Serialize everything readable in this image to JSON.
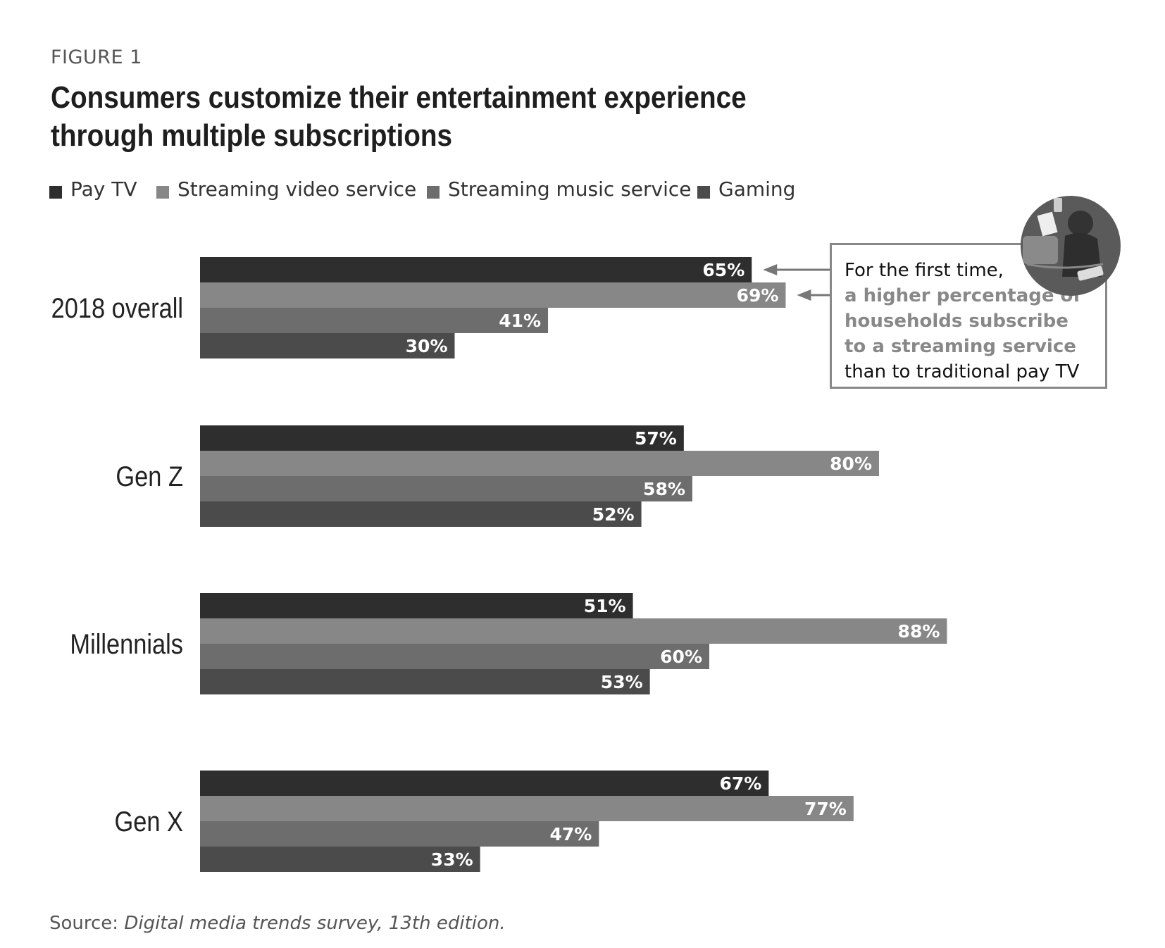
{
  "figure_label": "FIGURE 1",
  "chart_data": {
    "type": "bar",
    "orientation": "horizontal",
    "title": "Consumers customize their entertainment experience through multiple subscriptions",
    "categories": [
      "2018 overall",
      "Gen Z",
      "Millennials",
      "Gen X"
    ],
    "series": [
      {
        "name": "Pay TV",
        "color": "#2e2e2e",
        "values": [
          65,
          57,
          51,
          67
        ],
        "labels": [
          "65%",
          "57%",
          "51%",
          "67%"
        ]
      },
      {
        "name": "Streaming video service",
        "color": "#878787",
        "values": [
          69,
          80,
          88,
          77
        ],
        "labels": [
          "69%",
          "80%",
          "88%",
          "77%"
        ]
      },
      {
        "name": "Streaming music service",
        "color": "#6d6d6d",
        "values": [
          41,
          58,
          60,
          47
        ],
        "labels": [
          "41%",
          "58%",
          "60%",
          "47%"
        ]
      },
      {
        "name": "Gaming",
        "color": "#4b4b4b",
        "values": [
          30,
          52,
          53,
          33
        ],
        "labels": [
          "30%",
          "52%",
          "53%",
          "33%"
        ]
      }
    ],
    "legend_position": "top-left",
    "grid": false,
    "value_unit": "%"
  },
  "callout": {
    "line1": "For the first time,",
    "line2": "a higher percentage of households subscribe to a streaming service",
    "line3": "than to traditional pay TV"
  },
  "source": {
    "label": "Source: ",
    "title": "Digital media trends survey, 13th edition."
  },
  "illustration": {
    "icon": "person-with-devices-illustration",
    "color": "#555555"
  }
}
